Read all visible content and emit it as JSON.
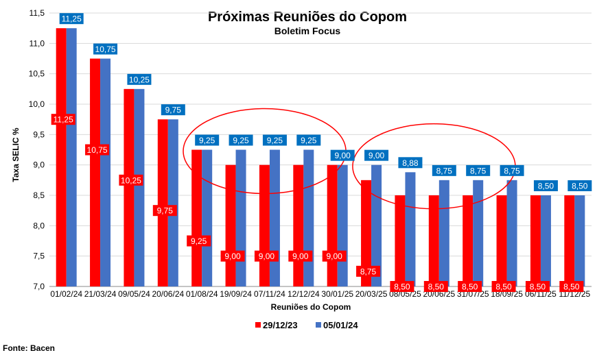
{
  "chart_data": {
    "type": "bar",
    "title": "Próximas Reuniões do Copom",
    "subtitle": "Boletim Focus",
    "xlabel": "Reuniões do Copom",
    "ylabel": "Taxa SELIC %",
    "ylim": [
      7.0,
      11.5
    ],
    "yticks": [
      "7,0",
      "7,5",
      "8,0",
      "8,5",
      "9,0",
      "9,5",
      "10,0",
      "10,5",
      "11,0",
      "11,5"
    ],
    "grid": true,
    "legend_position": "bottom",
    "categories": [
      "01/02/24",
      "21/03/24",
      "09/05/24",
      "20/06/24",
      "01/08/24",
      "19/09/24",
      "07/11/24",
      "12/12/24",
      "30/01/25",
      "20/03/25",
      "08/05/25",
      "20/06/25",
      "31/07/25",
      "18/09/25",
      "06/11/25",
      "11/12/25"
    ],
    "series": [
      {
        "name": "29/12/23",
        "color": "#ff0000",
        "values": [
          11.25,
          10.75,
          10.25,
          9.75,
          9.25,
          9.0,
          9.0,
          9.0,
          9.0,
          8.75,
          8.5,
          8.5,
          8.5,
          8.5,
          8.5,
          8.5
        ],
        "labels": [
          "11,25",
          "10,75",
          "10,25",
          "9,75",
          "9,25",
          "9,00",
          "9,00",
          "9,00",
          "9,00",
          "8,75",
          "8,50",
          "8,50",
          "8,50",
          "8,50",
          "8,50",
          "8,50"
        ]
      },
      {
        "name": "05/01/24",
        "color": "#4472c4",
        "values": [
          11.25,
          10.75,
          10.25,
          9.75,
          9.25,
          9.25,
          9.25,
          9.25,
          9.0,
          9.0,
          8.88,
          8.75,
          8.75,
          8.75,
          8.5,
          8.5
        ],
        "labels": [
          "11,25",
          "10,75",
          "10,25",
          "9,75",
          "9,25",
          "9,25",
          "9,25",
          "9,25",
          "9,00",
          "9,00",
          "8,88",
          "8,75",
          "8,75",
          "8,75",
          "8,50",
          "8,50"
        ],
        "label_box_color": "#0070c0"
      }
    ],
    "annotations": [
      {
        "type": "ellipse",
        "color": "#ff0000",
        "covers_categories": [
          "01/08/24",
          "19/09/24",
          "07/11/24",
          "12/12/24",
          "30/01/25"
        ]
      },
      {
        "type": "ellipse",
        "color": "#ff0000",
        "covers_categories": [
          "20/03/25",
          "08/05/25",
          "20/06/25",
          "31/07/25",
          "18/09/25"
        ]
      }
    ]
  },
  "source": "Fonte: Bacen"
}
